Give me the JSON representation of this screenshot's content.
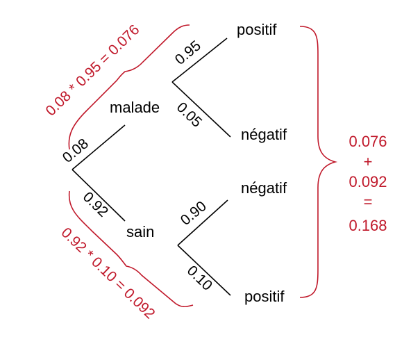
{
  "colors": {
    "ink": "#000000",
    "accent": "#c0182a"
  },
  "tree": {
    "level1": {
      "upper_node": "malade",
      "lower_node": "sain"
    },
    "level2": {
      "upper_upper": "positif",
      "upper_lower": "négatif",
      "lower_upper": "négatif",
      "lower_lower": "positif"
    },
    "probabilities": {
      "root_to_malade": "0.08",
      "root_to_sain": "0.92",
      "malade_to_positif": "0.95",
      "malade_to_negatif": "0.05",
      "sain_to_negatif": "0.90",
      "sain_to_positif": "0.10"
    }
  },
  "annotations": {
    "upper_path_product": "0.08 * 0.95 = 0.076",
    "lower_path_product": "0.92 * 0.10 = 0.092",
    "total_lines": [
      "0.076",
      "+",
      "0.092",
      "=",
      "0.168"
    ]
  }
}
